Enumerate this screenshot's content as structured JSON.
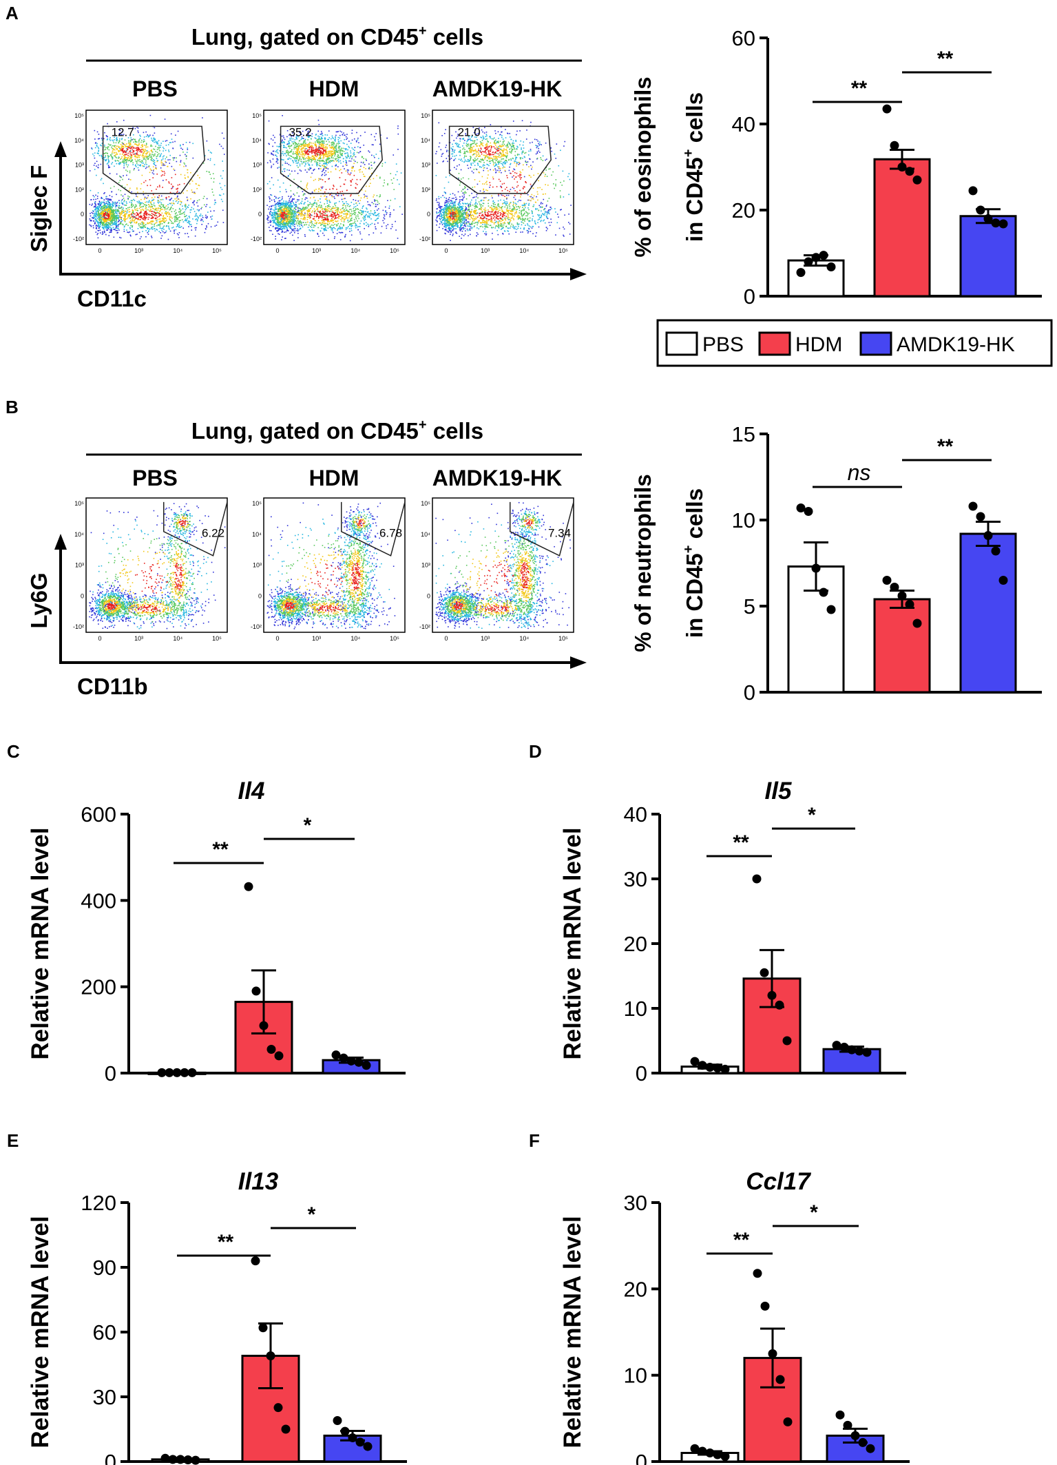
{
  "colors": {
    "PBS": "#ffffff",
    "HDM": "#f43f4c",
    "AMDK19-HK": "#4646f2",
    "axis": "#000000",
    "gate": "#222222",
    "dots": "#000000"
  },
  "panels": {
    "A": {
      "letter": "A",
      "header": {
        "main": "Lung, gated on CD45",
        "sup": "+",
        "tail": " cells"
      },
      "groups": [
        "PBS",
        "HDM",
        "AMDK19-HK"
      ],
      "y_label": "Siglec F",
      "x_label": "CD11c",
      "gate_values": [
        "12.7",
        "35.2",
        "21.0"
      ],
      "tick_labels_y": [
        "10⁵",
        "10⁴",
        "10³",
        "10²",
        "0",
        "-10²"
      ],
      "tick_labels_x": [
        "0",
        "10³",
        "10⁴",
        "10⁵"
      ]
    },
    "B": {
      "letter": "B",
      "header": {
        "main": "Lung, gated on CD45",
        "sup": "+",
        "tail": " cells"
      },
      "groups": [
        "PBS",
        "HDM",
        "AMDK19-HK"
      ],
      "y_label": "Ly6G",
      "x_label": "CD11b",
      "gate_values": [
        "6.22",
        "6.78",
        "7.34"
      ],
      "tick_labels_y": [
        "10⁵",
        "10⁴",
        "10³",
        "0",
        "-10²"
      ],
      "tick_labels_x": [
        "0",
        "10³",
        "10⁴",
        "10⁵"
      ]
    },
    "C": {
      "letter": "C"
    },
    "D": {
      "letter": "D"
    },
    "E": {
      "letter": "E"
    },
    "F": {
      "letter": "F"
    }
  },
  "legend": {
    "entries": [
      "PBS",
      "HDM",
      "AMDK19-HK"
    ]
  },
  "chart_data": [
    {
      "id": "A",
      "type": "bar",
      "title": "",
      "categories": [
        "PBS",
        "HDM",
        "AMDK19-HK"
      ],
      "values": [
        8.3,
        31.8,
        18.6
      ],
      "errors": [
        1.2,
        2.2,
        1.6
      ],
      "points": [
        [
          5.5,
          8.0,
          9.0,
          9.5,
          6.8
        ],
        [
          43.5,
          35.0,
          30.0,
          29.0,
          27.0
        ],
        [
          24.5,
          20.0,
          18.0,
          17.0,
          16.8
        ]
      ],
      "ylabel_line1": "% of eosinophils",
      "ylabel_line2": "in CD45",
      "ylabel_sup": "+",
      "ylabel_tail": " cells",
      "ylim": [
        0,
        60
      ],
      "yticks": [
        0,
        20,
        40,
        60
      ],
      "ytick_labels": [
        "0",
        "20",
        "40",
        "60"
      ],
      "significance": [
        {
          "from": 0,
          "to": 1,
          "label": "**"
        },
        {
          "from": 1,
          "to": 2,
          "label": "**"
        }
      ]
    },
    {
      "id": "B",
      "type": "bar",
      "title": "",
      "categories": [
        "PBS",
        "HDM",
        "AMDK19-HK"
      ],
      "values": [
        7.3,
        5.4,
        9.2
      ],
      "errors": [
        1.4,
        0.5,
        0.7
      ],
      "points": [
        [
          10.7,
          10.5,
          7.2,
          5.8,
          4.8
        ],
        [
          6.5,
          6.1,
          5.6,
          5.1,
          4.0
        ],
        [
          10.8,
          10.2,
          9.1,
          8.2,
          6.5
        ]
      ],
      "ylabel_line1": "% of neutrophils",
      "ylabel_line2": "in CD45",
      "ylabel_sup": "+",
      "ylabel_tail": " cells",
      "ylim": [
        0,
        15
      ],
      "yticks": [
        0,
        5,
        10,
        15
      ],
      "ytick_labels": [
        "0",
        "5",
        "10",
        "15"
      ],
      "significance": [
        {
          "from": 0,
          "to": 1,
          "label": "ns"
        },
        {
          "from": 1,
          "to": 2,
          "label": "**"
        }
      ]
    },
    {
      "id": "C",
      "type": "bar",
      "title": "Il4",
      "categories": [
        "PBS",
        "HDM",
        "AMDK19-HK"
      ],
      "values": [
        1,
        165,
        30
      ],
      "errors": [
        0.5,
        73,
        6
      ],
      "points": [
        [
          1,
          1,
          1,
          1,
          1
        ],
        [
          432,
          190,
          110,
          55,
          40
        ],
        [
          42,
          35,
          28,
          25,
          18
        ]
      ],
      "ylabel_line1": "Relative mRNA level",
      "ylim": [
        0,
        600
      ],
      "yticks": [
        0,
        200,
        400,
        600
      ],
      "ytick_labels": [
        "0",
        "200",
        "400",
        "600"
      ],
      "significance": [
        {
          "from": 0,
          "to": 1,
          "label": "**"
        },
        {
          "from": 1,
          "to": 2,
          "label": "*"
        }
      ]
    },
    {
      "id": "D",
      "type": "bar",
      "title": "Il5",
      "categories": [
        "PBS",
        "HDM",
        "AMDK19-HK"
      ],
      "values": [
        1.0,
        14.6,
        3.7
      ],
      "errors": [
        0.3,
        4.4,
        0.4
      ],
      "points": [
        [
          1.8,
          1.2,
          0.9,
          0.8,
          0.6
        ],
        [
          30.0,
          15.5,
          12.0,
          10.5,
          5.0
        ],
        [
          4.3,
          4.0,
          3.6,
          3.4,
          3.2
        ]
      ],
      "ylabel_line1": "Relative mRNA level",
      "ylim": [
        0,
        40
      ],
      "yticks": [
        0,
        10,
        20,
        30,
        40
      ],
      "ytick_labels": [
        "0",
        "10",
        "20",
        "30",
        "40"
      ],
      "significance": [
        {
          "from": 0,
          "to": 1,
          "label": "**"
        },
        {
          "from": 1,
          "to": 2,
          "label": "*"
        }
      ]
    },
    {
      "id": "E",
      "type": "bar",
      "title": "Il13",
      "categories": [
        "PBS",
        "HDM",
        "AMDK19-HK"
      ],
      "values": [
        1,
        49,
        12
      ],
      "errors": [
        0.4,
        15,
        2.2
      ],
      "points": [
        [
          1.5,
          1.0,
          1.0,
          0.8,
          0.6
        ],
        [
          93,
          62,
          49,
          25,
          15
        ],
        [
          19,
          14,
          11,
          9,
          7
        ]
      ],
      "ylabel_line1": "Relative mRNA level",
      "ylim": [
        0,
        120
      ],
      "yticks": [
        0,
        30,
        60,
        90,
        120
      ],
      "ytick_labels": [
        "0",
        "30",
        "60",
        "90",
        "120"
      ],
      "significance": [
        {
          "from": 0,
          "to": 1,
          "label": "**"
        },
        {
          "from": 1,
          "to": 2,
          "label": "*"
        }
      ]
    },
    {
      "id": "F",
      "type": "bar",
      "title": "Ccl17",
      "categories": [
        "PBS",
        "HDM",
        "AMDK19-HK"
      ],
      "values": [
        1.0,
        12.0,
        3.0
      ],
      "errors": [
        0.2,
        3.4,
        0.8
      ],
      "points": [
        [
          1.5,
          1.2,
          1.0,
          0.8,
          0.6
        ],
        [
          21.8,
          18.0,
          12.5,
          9.5,
          4.6
        ],
        [
          5.4,
          4.2,
          3.0,
          2.2,
          1.5
        ]
      ],
      "ylabel_line1": "Relative mRNA level",
      "ylim": [
        0,
        30
      ],
      "yticks": [
        0,
        10,
        20,
        30
      ],
      "ytick_labels": [
        "0",
        "10",
        "20",
        "30"
      ],
      "significance": [
        {
          "from": 0,
          "to": 1,
          "label": "**"
        },
        {
          "from": 1,
          "to": 2,
          "label": "*"
        }
      ]
    }
  ]
}
